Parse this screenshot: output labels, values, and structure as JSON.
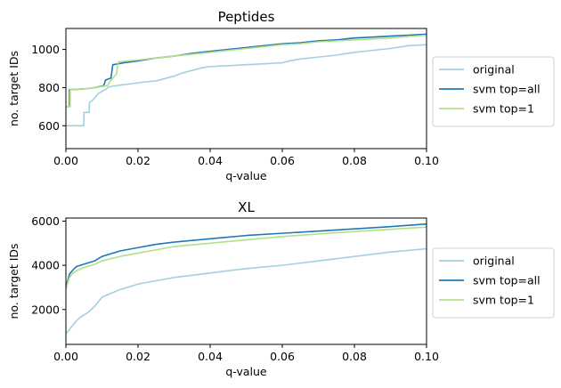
{
  "chart_data": [
    {
      "type": "line",
      "title": "Peptides",
      "xlabel": "q-value",
      "ylabel": "no. target IDs",
      "xlim": [
        0,
        0.1
      ],
      "ylim": [
        480,
        1110
      ],
      "xticks": [
        0,
        0.02,
        0.04,
        0.06,
        0.08,
        0.1
      ],
      "xtick_labels": [
        "0.00",
        "0.02",
        "0.04",
        "0.06",
        "0.08",
        "0.10"
      ],
      "yticks": [
        600,
        800,
        1000
      ],
      "ytick_labels": [
        "600",
        "800",
        "1000"
      ],
      "legend_position": "right-outside",
      "grid": false,
      "series": [
        {
          "name": "original",
          "color": "#a6cee3",
          "x": [
            0,
            0.005,
            0.005,
            0.0065,
            0.0065,
            0.008,
            0.009,
            0.011,
            0.012,
            0.014,
            0.016,
            0.018,
            0.02,
            0.022,
            0.025,
            0.028,
            0.03,
            0.032,
            0.034,
            0.036,
            0.038,
            0.04,
            0.045,
            0.05,
            0.055,
            0.06,
            0.062,
            0.065,
            0.07,
            0.075,
            0.08,
            0.085,
            0.09,
            0.095,
            0.1
          ],
          "y": [
            600,
            600,
            670,
            670,
            720,
            745,
            770,
            790,
            805,
            810,
            815,
            820,
            825,
            830,
            835,
            850,
            860,
            875,
            885,
            895,
            905,
            910,
            915,
            920,
            925,
            930,
            940,
            950,
            960,
            970,
            985,
            995,
            1005,
            1020,
            1025
          ]
        },
        {
          "name": "svm top=all",
          "color": "#1f78b4",
          "x": [
            0,
            0.001,
            0.001,
            0.003,
            0.006,
            0.008,
            0.0105,
            0.011,
            0.0125,
            0.013,
            0.016,
            0.02,
            0.025,
            0.03,
            0.035,
            0.04,
            0.045,
            0.05,
            0.055,
            0.06,
            0.065,
            0.07,
            0.075,
            0.08,
            0.085,
            0.09,
            0.095,
            0.1
          ],
          "y": [
            700,
            700,
            790,
            790,
            795,
            800,
            810,
            840,
            850,
            920,
            930,
            940,
            955,
            965,
            980,
            990,
            1000,
            1010,
            1020,
            1030,
            1035,
            1045,
            1050,
            1060,
            1065,
            1070,
            1075,
            1080
          ]
        },
        {
          "name": "svm top=1",
          "color": "#b2df8a",
          "x": [
            0,
            0.0012,
            0.0012,
            0.004,
            0.008,
            0.0115,
            0.012,
            0.013,
            0.014,
            0.0145,
            0.02,
            0.025,
            0.03,
            0.035,
            0.04,
            0.045,
            0.05,
            0.055,
            0.06,
            0.065,
            0.07,
            0.075,
            0.08,
            0.085,
            0.09,
            0.095,
            0.1
          ],
          "y": [
            700,
            700,
            790,
            790,
            800,
            810,
            825,
            850,
            870,
            935,
            945,
            955,
            965,
            975,
            985,
            995,
            1005,
            1015,
            1025,
            1030,
            1040,
            1045,
            1050,
            1055,
            1060,
            1068,
            1075
          ]
        }
      ]
    },
    {
      "type": "line",
      "title": "XL",
      "xlabel": "q-value",
      "ylabel": "no. target IDs",
      "xlim": [
        0,
        0.1
      ],
      "ylim": [
        420,
        6140
      ],
      "xticks": [
        0,
        0.02,
        0.04,
        0.06,
        0.08,
        0.1
      ],
      "xtick_labels": [
        "0.00",
        "0.02",
        "0.04",
        "0.06",
        "0.08",
        "0.10"
      ],
      "yticks": [
        2000,
        4000,
        6000
      ],
      "ytick_labels": [
        "2000",
        "4000",
        "6000"
      ],
      "legend_position": "right-outside",
      "grid": false,
      "series": [
        {
          "name": "original",
          "color": "#a6cee3",
          "x": [
            0,
            0.001,
            0.002,
            0.003,
            0.004,
            0.006,
            0.008,
            0.01,
            0.012,
            0.015,
            0.02,
            0.025,
            0.03,
            0.035,
            0.04,
            0.05,
            0.06,
            0.07,
            0.08,
            0.09,
            0.1
          ],
          "y": [
            900,
            1100,
            1300,
            1500,
            1650,
            1850,
            2150,
            2550,
            2700,
            2900,
            3150,
            3300,
            3450,
            3550,
            3650,
            3850,
            4000,
            4200,
            4400,
            4600,
            4750
          ]
        },
        {
          "name": "svm top=all",
          "color": "#1f78b4",
          "x": [
            0,
            0.0005,
            0.001,
            0.002,
            0.003,
            0.005,
            0.008,
            0.01,
            0.015,
            0.02,
            0.025,
            0.03,
            0.04,
            0.05,
            0.06,
            0.07,
            0.08,
            0.09,
            0.1
          ],
          "y": [
            3000,
            3300,
            3600,
            3800,
            3950,
            4050,
            4200,
            4400,
            4650,
            4800,
            4950,
            5050,
            5200,
            5350,
            5450,
            5550,
            5650,
            5750,
            5870
          ]
        },
        {
          "name": "svm top=1",
          "color": "#b2df8a",
          "x": [
            0,
            0.0005,
            0.001,
            0.002,
            0.003,
            0.005,
            0.008,
            0.01,
            0.015,
            0.02,
            0.025,
            0.03,
            0.04,
            0.05,
            0.06,
            0.07,
            0.08,
            0.09,
            0.1
          ],
          "y": [
            2900,
            3200,
            3450,
            3650,
            3750,
            3900,
            4050,
            4200,
            4400,
            4550,
            4700,
            4850,
            5000,
            5150,
            5300,
            5420,
            5530,
            5630,
            5730
          ]
        }
      ]
    }
  ]
}
